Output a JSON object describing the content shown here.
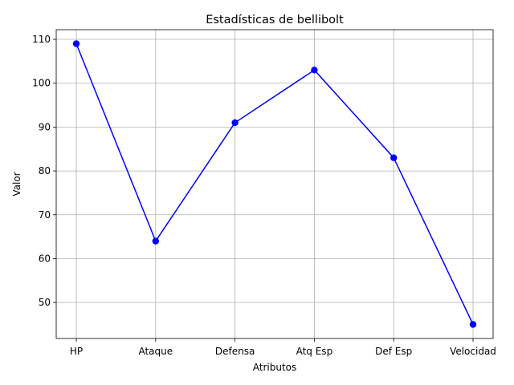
{
  "chart_data": {
    "type": "line",
    "title": "Estadísticas de bellibolt",
    "xlabel": "Atributos",
    "ylabel": "Valor",
    "categories": [
      "HP",
      "Ataque",
      "Defensa",
      "Atq Esp",
      "Def Esp",
      "Velocidad"
    ],
    "series": [
      {
        "values": [
          109,
          64,
          91,
          103,
          83,
          45
        ],
        "color": "#0000ff",
        "marker": "circle"
      }
    ],
    "ylim": [
      41.8,
      112.2
    ],
    "yticks": [
      50,
      60,
      70,
      80,
      90,
      100,
      110
    ],
    "grid": true,
    "legend": "none"
  }
}
